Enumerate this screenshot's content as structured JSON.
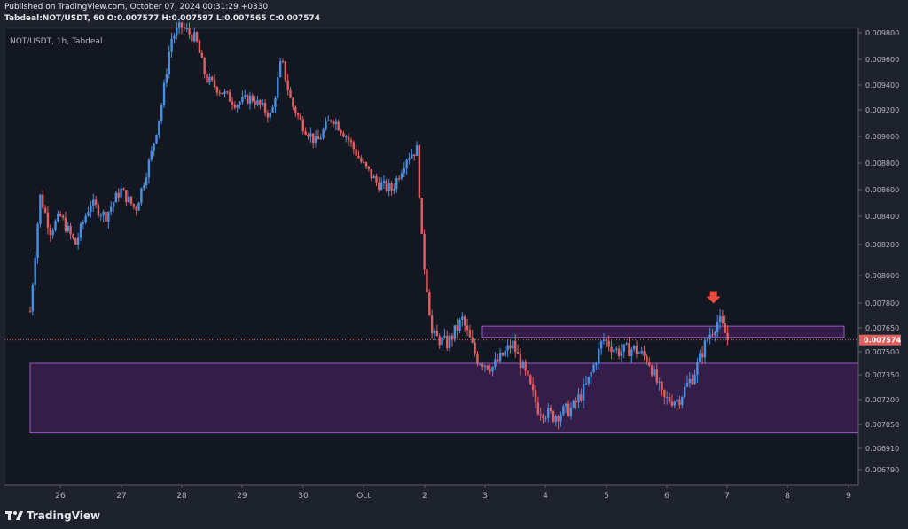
{
  "header": {
    "published": "Published on TradingView.com, October 07, 2024 00:31:29 +0330",
    "ohlc": "Tabdeal:NOT/USDT, 60 O:0.007577 H:0.007597 L:0.007565 C:0.007574"
  },
  "footer": {
    "brand": "TradingView"
  },
  "colors": {
    "up": "#4a90e2",
    "down": "#e0605f",
    "zone_fill": "#3b1f4f",
    "zone_border": "#9b59c8",
    "arrow": "#e84a3c"
  },
  "chart_data": {
    "type": "candlestick",
    "title": "NOT/USDT, 1h, Tabdeal",
    "last_price_label": "0.007574",
    "last_price": 0.007574,
    "y_ticks": [
      "0.009800",
      "0.009600",
      "0.009400",
      "0.009200",
      "0.009000",
      "0.008800",
      "0.008600",
      "0.008400",
      "0.008200",
      "0.008000",
      "0.007800",
      "0.007650",
      "0.007500",
      "0.007350",
      "0.007200",
      "0.007050",
      "0.006910",
      "0.006790"
    ],
    "x_ticks": [
      "26",
      "27",
      "28",
      "29",
      "30",
      "Oct",
      "2",
      "3",
      "4",
      "5",
      "6",
      "7",
      "8",
      "9"
    ],
    "path": [
      [
        "Sep 25 12:00",
        0.00775
      ],
      [
        "Sep 25 14:00",
        0.00815
      ],
      [
        "Sep 25 16:00",
        0.00855
      ],
      [
        "Sep 25 20:00",
        0.0083
      ],
      [
        "Sep 26 00:00",
        0.0084
      ],
      [
        "Sep 26 06:00",
        0.0082
      ],
      [
        "Sep 26 12:00",
        0.0085
      ],
      [
        "Sep 26 18:00",
        0.0084
      ],
      [
        "Sep 27 00:00",
        0.0086
      ],
      [
        "Sep 27 06:00",
        0.00845
      ],
      [
        "Sep 27 12:00",
        0.00885
      ],
      [
        "Sep 27 16:00",
        0.0092
      ],
      [
        "Sep 27 20:00",
        0.00975
      ],
      [
        "Sep 28 00:00",
        0.00985
      ],
      [
        "Sep 28 06:00",
        0.00975
      ],
      [
        "Sep 28 10:00",
        0.00945
      ],
      [
        "Sep 28 16:00",
        0.00935
      ],
      [
        "Sep 28 22:00",
        0.00925
      ],
      [
        "Sep 29 04:00",
        0.0093
      ],
      [
        "Sep 29 12:00",
        0.00915
      ],
      [
        "Sep 29 16:00",
        0.0096
      ],
      [
        "Sep 29 20:00",
        0.00925
      ],
      [
        "Sep 30 00:00",
        0.0091
      ],
      [
        "Sep 30 06:00",
        0.00895
      ],
      [
        "Sep 30 12:00",
        0.00915
      ],
      [
        "Sep 30 18:00",
        0.009
      ],
      [
        "Oct 01 00:00",
        0.0088
      ],
      [
        "Oct 01 06:00",
        0.00865
      ],
      [
        "Oct 01 12:00",
        0.0086
      ],
      [
        "Oct 01 18:00",
        0.00885
      ],
      [
        "Oct 01 22:00",
        0.0089
      ],
      [
        "Oct 02 00:00",
        0.0082
      ],
      [
        "Oct 02 04:00",
        0.0076
      ],
      [
        "Oct 02 10:00",
        0.00755
      ],
      [
        "Oct 02 16:00",
        0.0077
      ],
      [
        "Oct 02 22:00",
        0.00745
      ],
      [
        "Oct 03 04:00",
        0.0074
      ],
      [
        "Oct 03 12:00",
        0.00755
      ],
      [
        "Oct 03 16:00",
        0.0074
      ],
      [
        "Oct 03 22:00",
        0.00715
      ],
      [
        "Oct 04 04:00",
        0.0071
      ],
      [
        "Oct 04 12:00",
        0.00715
      ],
      [
        "Oct 04 18:00",
        0.0073
      ],
      [
        "Oct 05 00:00",
        0.00758
      ],
      [
        "Oct 05 06:00",
        0.0075
      ],
      [
        "Oct 05 12:00",
        0.00752
      ],
      [
        "Oct 05 18:00",
        0.00745
      ],
      [
        "Oct 06 00:00",
        0.0072
      ],
      [
        "Oct 06 06:00",
        0.0072
      ],
      [
        "Oct 06 12:00",
        0.00735
      ],
      [
        "Oct 06 18:00",
        0.0076
      ],
      [
        "Oct 06 22:00",
        0.0077
      ],
      [
        "Oct 07 02:00",
        0.007574
      ]
    ],
    "zones": [
      {
        "name": "resistance",
        "from_date": "Oct 03 00:00",
        "to_date": "Oct 09 00:00",
        "low": 0.00759,
        "high": 0.00766
      },
      {
        "name": "support",
        "from_date": "Sep 25 12:00",
        "to_date": "Oct 09 12:00",
        "low": 0.007,
        "high": 0.007425
      }
    ],
    "arrow": {
      "date": "Oct 06 20:00",
      "price": 0.00781
    }
  }
}
